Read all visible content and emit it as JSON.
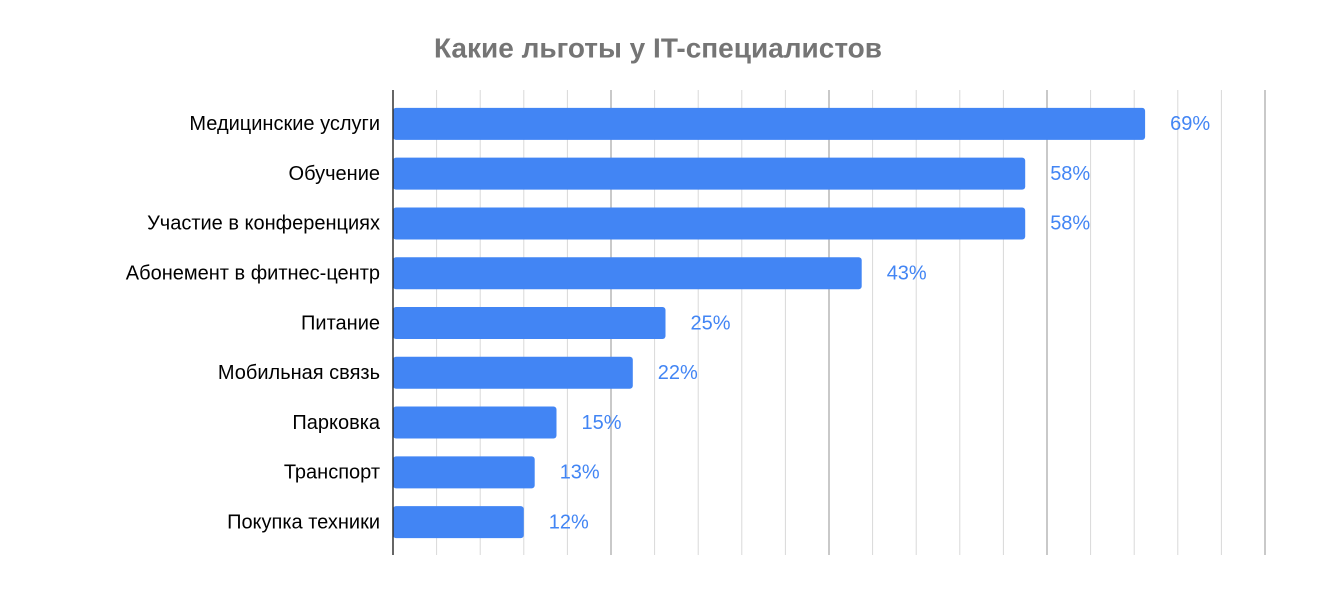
{
  "chart_data": {
    "type": "barh",
    "title": "Какие льготы у IT-специалистов",
    "categories": [
      "Медицинские услуги",
      "Обучение",
      "Участие в конференциях",
      "Абонемент в фитнес-центр",
      "Питание",
      "Мобильная связь",
      "Парковка",
      "Транспорт",
      "Покупка техники"
    ],
    "values": [
      69,
      58,
      58,
      43,
      25,
      22,
      15,
      13,
      12
    ],
    "value_labels": [
      "69%",
      "58%",
      "58%",
      "43%",
      "25%",
      "22%",
      "15%",
      "13%",
      "12%"
    ],
    "color": "#4285f4",
    "xlim": [
      0,
      80
    ],
    "xticks": [
      0,
      4,
      8,
      12,
      16,
      20,
      24,
      28,
      32,
      36,
      40,
      44,
      48,
      52,
      56,
      60,
      64,
      68,
      72,
      76,
      80
    ],
    "xticks_major": [
      20,
      40,
      60,
      80
    ],
    "grid": true
  }
}
